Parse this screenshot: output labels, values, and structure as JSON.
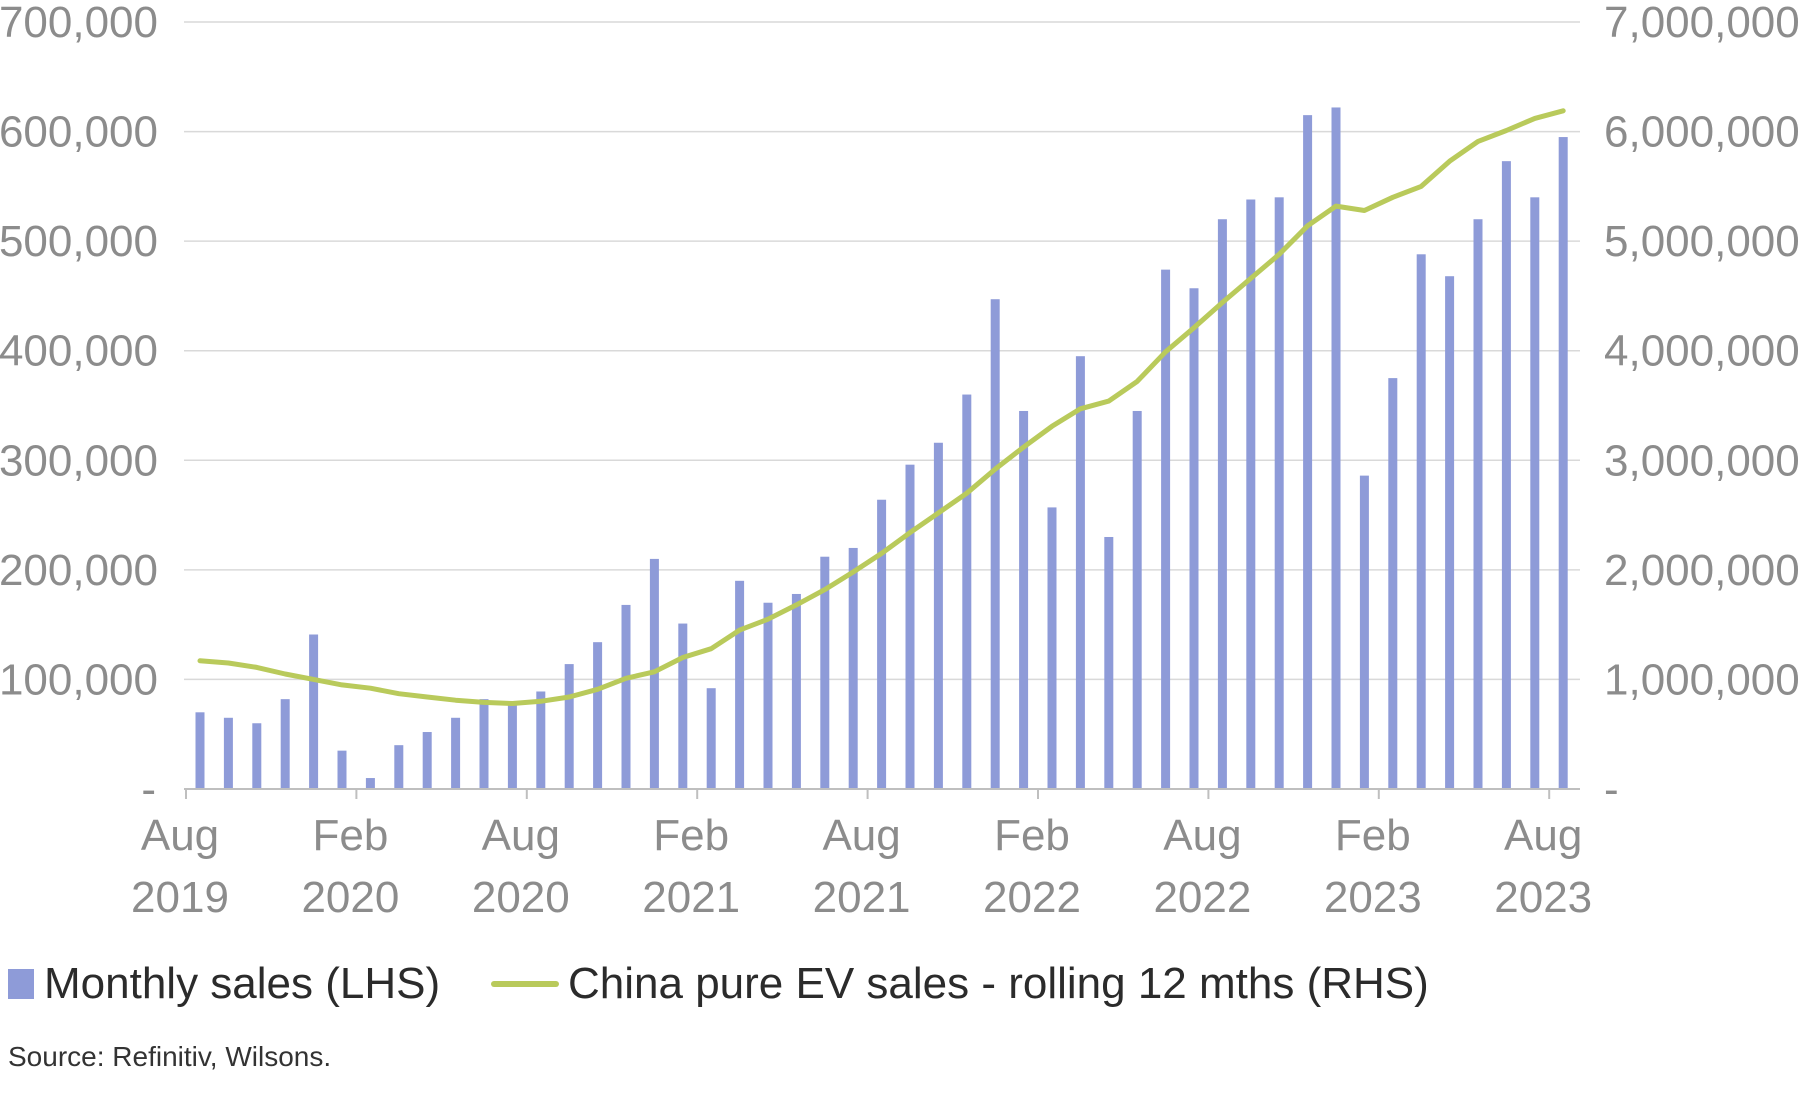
{
  "chart_data": {
    "type": "bar",
    "x": [
      "Aug 2019",
      "Sep 2019",
      "Oct 2019",
      "Nov 2019",
      "Dec 2019",
      "Jan 2020",
      "Feb 2020",
      "Mar 2020",
      "Apr 2020",
      "May 2020",
      "Jun 2020",
      "Jul 2020",
      "Aug 2020",
      "Sep 2020",
      "Oct 2020",
      "Nov 2020",
      "Dec 2020",
      "Jan 2021",
      "Feb 2021",
      "Mar 2021",
      "Apr 2021",
      "May 2021",
      "Jun 2021",
      "Jul 2021",
      "Aug 2021",
      "Sep 2021",
      "Oct 2021",
      "Nov 2021",
      "Dec 2021",
      "Jan 2022",
      "Feb 2022",
      "Mar 2022",
      "Apr 2022",
      "May 2022",
      "Jun 2022",
      "Jul 2022",
      "Aug 2022",
      "Sep 2022",
      "Oct 2022",
      "Nov 2022",
      "Dec 2022",
      "Jan 2023",
      "Feb 2023",
      "Mar 2023",
      "Apr 2023",
      "May 2023",
      "Jun 2023",
      "Jul 2023",
      "Aug 2023"
    ],
    "series": [
      {
        "name": "Monthly sales (LHS)",
        "kind": "bar",
        "axis": "left",
        "color": "#8e9bd8",
        "values": [
          70000,
          65000,
          60000,
          82000,
          141000,
          35000,
          10000,
          40000,
          52000,
          65000,
          82000,
          80000,
          89000,
          114000,
          134000,
          168000,
          210000,
          151000,
          92000,
          190000,
          170000,
          178000,
          212000,
          220000,
          264000,
          296000,
          316000,
          360000,
          447000,
          345000,
          257000,
          395000,
          230000,
          345000,
          474000,
          457000,
          520000,
          538000,
          540000,
          615000,
          622000,
          286000,
          375000,
          488000,
          468000,
          520000,
          573000,
          540000,
          595000
        ]
      },
      {
        "name": "China pure EV sales - rolling 12 mths (RHS)",
        "kind": "line",
        "axis": "right",
        "color": "#b9ca5b",
        "values": [
          1170000,
          1150000,
          1110000,
          1050000,
          1000000,
          950000,
          920000,
          870000,
          840000,
          810000,
          790000,
          780000,
          800000,
          840000,
          910000,
          1010000,
          1070000,
          1200000,
          1280000,
          1450000,
          1550000,
          1680000,
          1820000,
          1980000,
          2150000,
          2340000,
          2520000,
          2700000,
          2920000,
          3120000,
          3310000,
          3470000,
          3540000,
          3720000,
          3990000,
          4210000,
          4440000,
          4660000,
          4880000,
          5140000,
          5320000,
          5280000,
          5400000,
          5500000,
          5730000,
          5910000,
          6010000,
          6120000,
          6190000
        ]
      }
    ],
    "ylim": [
      0,
      700000
    ],
    "y2lim": [
      0,
      7000000
    ],
    "y_ticks": [
      "-",
      "100,000",
      "200,000",
      "300,000",
      "400,000",
      "500,000",
      "600,000",
      "700,000"
    ],
    "y2_ticks": [
      "-",
      "1,000,000",
      "2,000,000",
      "3,000,000",
      "4,000,000",
      "5,000,000",
      "6,000,000",
      "7,000,000"
    ],
    "x_tick_labels": [
      {
        "month": "Aug",
        "year": "2019",
        "index": 0
      },
      {
        "month": "Feb",
        "year": "2020",
        "index": 6
      },
      {
        "month": "Aug",
        "year": "2020",
        "index": 12
      },
      {
        "month": "Feb",
        "year": "2021",
        "index": 18
      },
      {
        "month": "Aug",
        "year": "2021",
        "index": 24
      },
      {
        "month": "Feb",
        "year": "2022",
        "index": 30
      },
      {
        "month": "Aug",
        "year": "2022",
        "index": 36
      },
      {
        "month": "Feb",
        "year": "2023",
        "index": 42
      },
      {
        "month": "Aug",
        "year": "2023",
        "index": 48
      }
    ],
    "grid": true,
    "legend_position": "bottom-left",
    "source": "Source: Refinitiv, Wilsons."
  }
}
